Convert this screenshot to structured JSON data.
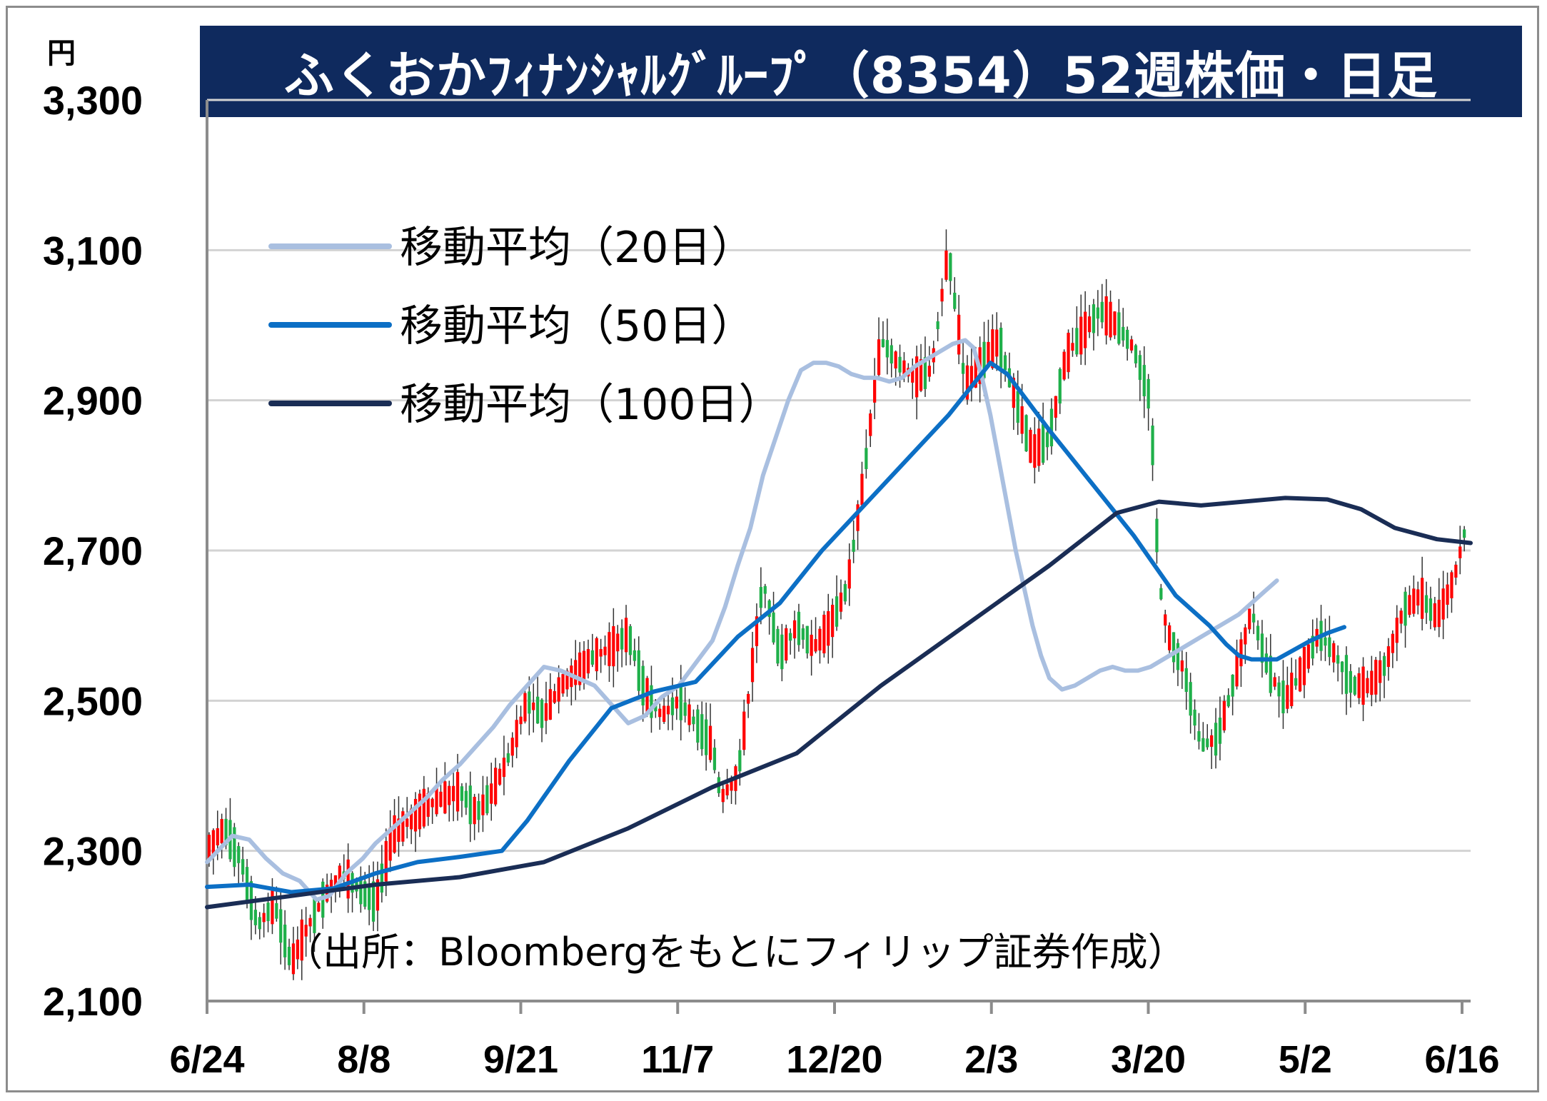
{
  "title": "ふくおかﾌｨﾅﾝｼｬﾙｸﾞﾙｰﾌﾟ（8354）52週株価・日足",
  "unit": "円",
  "source": "（出所：Bloombergをもとにフィリップ証券作成）",
  "colors": {
    "title_bg": "#0f2a5e",
    "title_text": "#ffffff",
    "up_candle": "#ff0000",
    "down_candle": "#1fb04a",
    "ma20": "#a9bfe0",
    "ma50": "#0c6fc5",
    "ma100": "#1a2d55",
    "grid": "#d3d3d3"
  },
  "chart_data": {
    "type": "candlestick",
    "ylim": [
      2100,
      3300
    ],
    "yticks": [
      {
        "value": 2100,
        "label": "2,100"
      },
      {
        "value": 2300,
        "label": "2,300"
      },
      {
        "value": 2500,
        "label": "2,500"
      },
      {
        "value": 2700,
        "label": "2,700"
      },
      {
        "value": 2900,
        "label": "2,900"
      },
      {
        "value": 3100,
        "label": "3,100"
      },
      {
        "value": 3300,
        "label": "3,300"
      }
    ],
    "xticks": [
      "6/24",
      "8/8",
      "9/21",
      "11/7",
      "12/20",
      "2/3",
      "3/20",
      "5/2",
      "6/16"
    ],
    "grid": "horizontal",
    "legend_position": "top-left",
    "series": [
      {
        "name": "移動平均（20日）",
        "color": "#a9bfe0",
        "values": [
          [
            0,
            2285
          ],
          [
            6,
            2320
          ],
          [
            10,
            2315
          ],
          [
            14,
            2290
          ],
          [
            18,
            2270
          ],
          [
            22,
            2260
          ],
          [
            26,
            2235
          ],
          [
            29,
            2240
          ],
          [
            33,
            2270
          ],
          [
            37,
            2290
          ],
          [
            40,
            2310
          ],
          [
            44,
            2330
          ],
          [
            48,
            2350
          ],
          [
            52,
            2370
          ],
          [
            56,
            2395
          ],
          [
            60,
            2415
          ],
          [
            64,
            2440
          ],
          [
            68,
            2465
          ],
          [
            72,
            2495
          ],
          [
            76,
            2520
          ],
          [
            80,
            2545
          ],
          [
            84,
            2540
          ],
          [
            88,
            2530
          ],
          [
            92,
            2520
          ],
          [
            96,
            2495
          ],
          [
            100,
            2470
          ],
          [
            104,
            2480
          ],
          [
            108,
            2505
          ],
          [
            112,
            2520
          ],
          [
            116,
            2550
          ],
          [
            120,
            2580
          ],
          [
            123,
            2625
          ],
          [
            126,
            2680
          ],
          [
            129,
            2730
          ],
          [
            132,
            2800
          ],
          [
            135,
            2850
          ],
          [
            138,
            2900
          ],
          [
            141,
            2940
          ],
          [
            144,
            2950
          ],
          [
            147,
            2950
          ],
          [
            150,
            2945
          ],
          [
            153,
            2935
          ],
          [
            156,
            2930
          ],
          [
            159,
            2930
          ],
          [
            162,
            2925
          ],
          [
            165,
            2930
          ],
          [
            168,
            2945
          ],
          [
            171,
            2955
          ],
          [
            174,
            2965
          ],
          [
            177,
            2975
          ],
          [
            180,
            2980
          ],
          [
            182,
            2970
          ],
          [
            184,
            2930
          ],
          [
            186,
            2880
          ],
          [
            188,
            2820
          ],
          [
            190,
            2760
          ],
          [
            192,
            2700
          ],
          [
            194,
            2650
          ],
          [
            196,
            2600
          ],
          [
            198,
            2560
          ],
          [
            200,
            2530
          ],
          [
            203,
            2515
          ],
          [
            206,
            2520
          ],
          [
            209,
            2530
          ],
          [
            212,
            2540
          ],
          [
            215,
            2545
          ],
          [
            218,
            2540
          ],
          [
            221,
            2540
          ],
          [
            224,
            2545
          ],
          [
            227,
            2555
          ],
          [
            230,
            2565
          ],
          [
            233,
            2575
          ],
          [
            236,
            2585
          ],
          [
            239,
            2595
          ],
          [
            242,
            2605
          ],
          [
            245,
            2615
          ],
          [
            248,
            2630
          ],
          [
            251,
            2645
          ],
          [
            254,
            2660
          ]
        ]
      },
      {
        "name": "移動平均（50日）",
        "color": "#0c6fc5",
        "values": [
          [
            0,
            2252
          ],
          [
            10,
            2255
          ],
          [
            20,
            2245
          ],
          [
            30,
            2250
          ],
          [
            40,
            2270
          ],
          [
            50,
            2285
          ],
          [
            60,
            2292
          ],
          [
            70,
            2300
          ],
          [
            76,
            2340
          ],
          [
            86,
            2420
          ],
          [
            96,
            2490
          ],
          [
            106,
            2512
          ],
          [
            116,
            2525
          ],
          [
            126,
            2585
          ],
          [
            136,
            2630
          ],
          [
            146,
            2700
          ],
          [
            156,
            2760
          ],
          [
            166,
            2820
          ],
          [
            176,
            2880
          ],
          [
            186,
            2950
          ],
          [
            190,
            2935
          ],
          [
            200,
            2860
          ],
          [
            210,
            2790
          ],
          [
            220,
            2720
          ],
          [
            230,
            2640
          ],
          [
            238,
            2600
          ],
          [
            242,
            2575
          ],
          [
            245,
            2560
          ],
          [
            248,
            2555
          ],
          [
            254,
            2555
          ],
          [
            262,
            2580
          ],
          [
            266,
            2590
          ],
          [
            270,
            2598
          ]
        ]
      },
      {
        "name": "移動平均（100日）",
        "color": "#1a2d55",
        "values": [
          [
            0,
            2225
          ],
          [
            20,
            2240
          ],
          [
            40,
            2255
          ],
          [
            60,
            2265
          ],
          [
            80,
            2285
          ],
          [
            100,
            2330
          ],
          [
            120,
            2385
          ],
          [
            140,
            2430
          ],
          [
            160,
            2520
          ],
          [
            180,
            2600
          ],
          [
            200,
            2680
          ],
          [
            216,
            2750
          ],
          [
            226,
            2765
          ],
          [
            236,
            2760
          ],
          [
            246,
            2765
          ],
          [
            256,
            2770
          ],
          [
            266,
            2768
          ],
          [
            274,
            2755
          ],
          [
            282,
            2730
          ],
          [
            292,
            2715
          ],
          [
            300,
            2710
          ]
        ]
      }
    ]
  },
  "legend": [
    {
      "label": "移動平均（20日）",
      "color": "#a9bfe0"
    },
    {
      "label": "移動平均（50日）",
      "color": "#0c6fc5"
    },
    {
      "label": "移動平均（100日）",
      "color": "#1a2d55"
    }
  ]
}
